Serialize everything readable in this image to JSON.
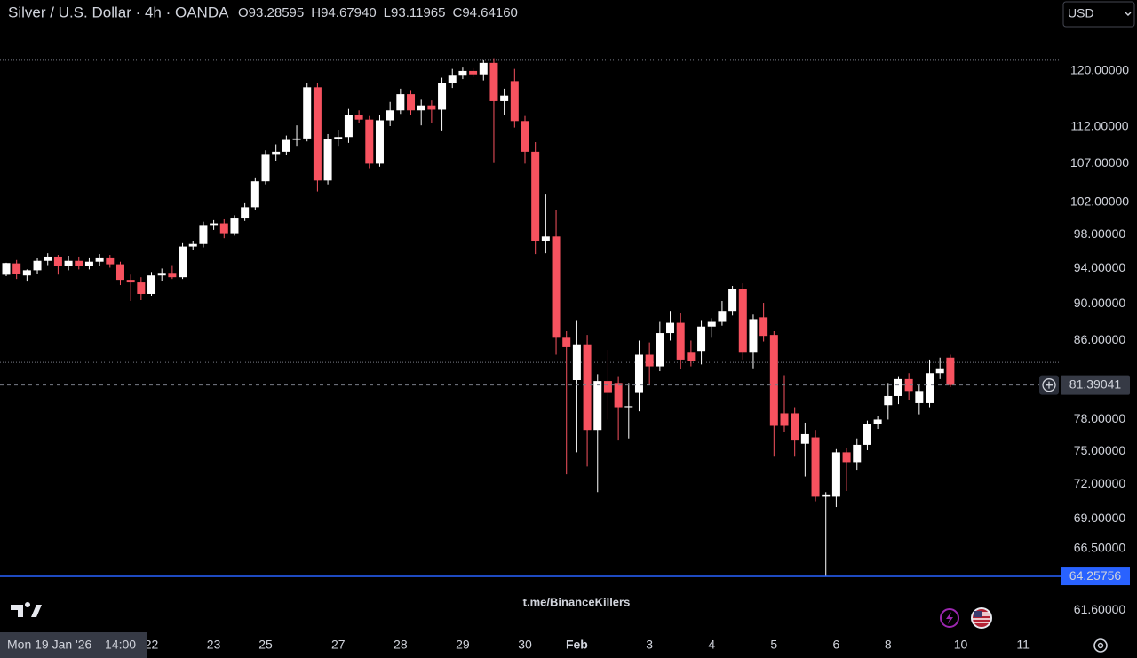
{
  "chart_data": {
    "type": "candlestick",
    "title": "Silver / U.S. Dollar · 4h · OANDA",
    "currency": "USD",
    "watermark": "t.me/BinanceKillers",
    "hover_prefixes": [
      "O",
      "H",
      "L",
      "C"
    ],
    "hover_labels": [
      "93.28595",
      "94.67940",
      "93.11965",
      "94.64160"
    ],
    "crosshair": {
      "date": "Mon 19 Jan '26",
      "time": "14:00"
    },
    "log_scale": true,
    "up_color": "#ffffff",
    "down_color": "#f7525f",
    "ylim": [
      60.1,
      131.0
    ],
    "yticks": [
      {
        "value": 120,
        "label": "120.00000"
      },
      {
        "value": 112,
        "label": "112.00000"
      },
      {
        "value": 107,
        "label": "107.00000"
      },
      {
        "value": 102,
        "label": "102.00000"
      },
      {
        "value": 98,
        "label": "98.00000"
      },
      {
        "value": 94,
        "label": "94.00000"
      },
      {
        "value": 90,
        "label": "90.00000"
      },
      {
        "value": 86,
        "label": "86.00000"
      },
      {
        "value": 78,
        "label": "78.00000"
      },
      {
        "value": 75,
        "label": "75.00000"
      },
      {
        "value": 72,
        "label": "72.00000"
      },
      {
        "value": 69,
        "label": "69.00000"
      },
      {
        "value": 66.5,
        "label": "66.50000"
      },
      {
        "value": 61.6,
        "label": "61.60000"
      }
    ],
    "dotted_lines": [
      121.6,
      83.7
    ],
    "marked_line": {
      "value": 64.25756,
      "color": "#2962ff"
    },
    "categories": [
      null,
      null,
      null,
      null,
      null,
      null,
      null,
      null,
      null,
      null,
      null,
      null,
      null,
      null,
      "22",
      null,
      null,
      null,
      null,
      null,
      "23",
      null,
      null,
      null,
      null,
      "25",
      null,
      null,
      null,
      null,
      null,
      null,
      "27",
      null,
      null,
      null,
      null,
      null,
      "28",
      null,
      null,
      null,
      null,
      null,
      "29",
      null,
      null,
      null,
      null,
      null,
      "30",
      null,
      null,
      null,
      null,
      "Feb",
      null,
      null,
      null,
      null,
      null,
      null,
      "3",
      null,
      null,
      null,
      null,
      null,
      "4",
      null,
      null,
      null,
      null,
      null,
      "5",
      null,
      null,
      null,
      null,
      null,
      "6",
      null,
      null,
      null,
      null,
      "8",
      null,
      null,
      null,
      null,
      null,
      null,
      "10",
      null,
      null,
      null,
      null,
      null,
      "11"
    ],
    "open": [
      93.28595,
      94.6,
      93.2,
      93.8,
      94.9,
      95.4,
      94.3,
      94.9,
      94.3,
      94.8,
      95.3,
      94.5,
      92.7,
      92.4,
      91.1,
      93.2,
      93.5,
      93.0,
      96.6,
      96.9,
      99.2,
      99.4,
      98.2,
      100.0,
      101.4,
      104.7,
      108.3,
      108.6,
      110.2,
      110.4,
      117.6,
      104.8,
      110.3,
      110.6,
      113.7,
      113.0,
      107.0,
      112.9,
      114.3,
      116.6,
      114.3,
      115.0,
      114.4,
      118.2,
      119.3,
      120.0,
      119.5,
      121.2,
      115.6,
      118.5,
      112.8,
      108.6,
      97.3,
      97.8,
      86.3,
      81.9,
      85.6,
      77.0,
      81.8,
      81.6,
      79.2,
      80.6,
      84.5,
      83.3,
      86.8,
      87.9,
      84.8,
      84.9,
      87.5,
      88.0,
      89.2,
      91.6,
      84.8,
      88.5,
      86.6,
      78.6,
      78.6,
      75.7,
      76.3,
      70.9,
      70.9,
      74.9,
      74.0,
      75.6,
      77.6,
      79.4,
      80.3,
      82.0,
      79.6,
      79.6,
      82.6,
      84.2,
      null,
      null,
      null,
      null,
      null,
      null,
      null
    ],
    "high": [
      94.6794,
      95.0,
      93.9,
      95.2,
      95.8,
      95.6,
      95.5,
      95.4,
      95.3,
      95.7,
      95.6,
      94.8,
      93.3,
      93.0,
      93.6,
      94.0,
      94.4,
      97.0,
      97.3,
      99.6,
      99.8,
      99.9,
      100.4,
      101.9,
      105.2,
      108.8,
      109.6,
      110.8,
      112.2,
      118.2,
      118.2,
      111.0,
      111.6,
      114.5,
      114.3,
      113.5,
      113.6,
      115.5,
      117.4,
      117.2,
      115.8,
      115.7,
      119.0,
      120.3,
      120.5,
      120.4,
      121.6,
      121.9,
      117.4,
      120.3,
      113.5,
      109.9,
      103.0,
      101.1,
      87.0,
      88.2,
      86.6,
      82.5,
      85.0,
      82.3,
      81.6,
      86.0,
      85.8,
      88.0,
      89.2,
      89.0,
      86.0,
      88.2,
      88.4,
      90.3,
      92.0,
      92.3,
      88.8,
      90.1,
      87.0,
      82.4,
      79.2,
      77.7,
      77.0,
      71.3,
      75.2,
      75.3,
      76.2,
      77.9,
      78.3,
      81.6,
      82.3,
      82.6,
      81.5,
      84.0,
      84.2,
      84.5,
      null,
      null,
      null,
      null,
      null,
      null,
      null
    ],
    "low": [
      93.11965,
      92.8,
      92.5,
      93.4,
      94.4,
      93.3,
      93.8,
      93.9,
      93.9,
      94.3,
      94.1,
      92.1,
      90.3,
      90.4,
      90.9,
      92.6,
      92.8,
      92.8,
      96.2,
      96.5,
      98.6,
      97.6,
      97.9,
      99.7,
      101.1,
      104.3,
      107.4,
      108.2,
      109.4,
      110.0,
      103.4,
      104.3,
      109.4,
      109.8,
      112.5,
      106.4,
      106.6,
      112.1,
      113.8,
      113.6,
      112.2,
      112.5,
      111.5,
      117.5,
      118.8,
      119.1,
      118.6,
      107.2,
      113.6,
      111.9,
      107.0,
      95.7,
      95.8,
      84.5,
      72.9,
      74.9,
      73.6,
      71.3,
      78.0,
      76.0,
      76.2,
      78.8,
      81.4,
      82.8,
      86.0,
      83.0,
      83.3,
      83.5,
      86.3,
      87.6,
      88.7,
      84.0,
      83.1,
      85.9,
      74.5,
      76.8,
      74.5,
      72.7,
      70.5,
      64.25756,
      70.0,
      71.4,
      73.3,
      75.1,
      77.1,
      78.0,
      79.5,
      79.9,
      78.5,
      79.2,
      82.0,
      81.2,
      null,
      null,
      null,
      null,
      null,
      null,
      null
    ],
    "close": [
      94.6416,
      93.4,
      93.8,
      94.9,
      95.4,
      94.3,
      94.9,
      94.3,
      94.8,
      95.3,
      94.5,
      92.7,
      92.4,
      91.1,
      93.2,
      93.5,
      93.0,
      96.6,
      96.9,
      99.2,
      99.4,
      98.2,
      100.0,
      101.4,
      104.7,
      108.3,
      108.6,
      110.2,
      110.4,
      117.6,
      104.8,
      110.3,
      110.6,
      113.7,
      113.0,
      107.0,
      112.9,
      114.3,
      116.6,
      114.3,
      115.0,
      114.4,
      118.2,
      119.3,
      120.0,
      119.5,
      121.2,
      115.6,
      116.4,
      112.8,
      108.6,
      97.3,
      97.8,
      86.3,
      85.3,
      85.6,
      77.0,
      81.8,
      80.6,
      79.2,
      79.3,
      84.5,
      83.3,
      86.8,
      87.9,
      84.0,
      83.9,
      87.5,
      88.0,
      89.2,
      91.6,
      84.8,
      88.3,
      86.5,
      77.4,
      77.4,
      76.0,
      76.6,
      70.9,
      71.1,
      74.9,
      74.0,
      75.6,
      77.6,
      78.0,
      80.3,
      82.0,
      80.8,
      80.8,
      82.6,
      83.1,
      81.39041,
      null,
      null,
      null,
      null,
      null,
      null,
      null
    ]
  }
}
